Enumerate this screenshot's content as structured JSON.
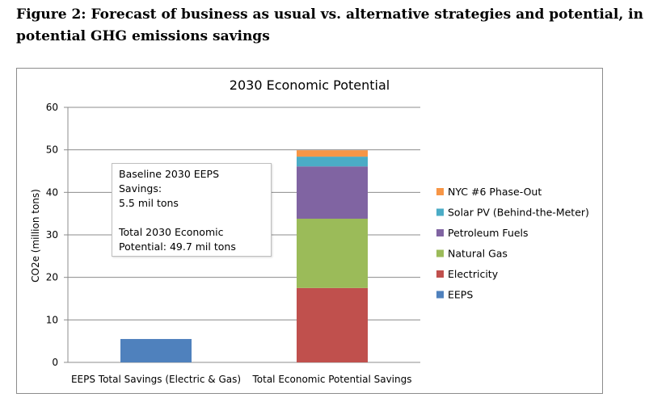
{
  "figure": {
    "title": "Figure 2: Forecast of business as usual vs. alternative strategies and potential, in potential GHG emissions savings"
  },
  "chart_data": {
    "type": "bar",
    "stacked": true,
    "title": "2030 Economic Potential",
    "xlabel": "",
    "ylabel": "CO2e (million tons)",
    "ylim": [
      0,
      60
    ],
    "yticks": [
      0,
      10,
      20,
      30,
      40,
      50,
      60
    ],
    "grid": true,
    "legend_position": "right",
    "categories": [
      "EEPS Total Savings (Electric & Gas)",
      "Total Economic Potential Savings"
    ],
    "series": [
      {
        "name": "EEPS",
        "color": "#4f81bd",
        "values": [
          5.5,
          0
        ]
      },
      {
        "name": "Electricity",
        "color": "#c0504d",
        "values": [
          0,
          17.5
        ]
      },
      {
        "name": "Natural Gas",
        "color": "#9bbb59",
        "values": [
          0,
          16.3
        ]
      },
      {
        "name": "Petroleum Fuels",
        "color": "#8064a2",
        "values": [
          0,
          12.3
        ]
      },
      {
        "name": "Solar PV (Behind-the-Meter)",
        "color": "#4bacc6",
        "values": [
          0,
          2.3
        ]
      },
      {
        "name": "NYC #6 Phase-Out",
        "color": "#f79646",
        "values": [
          0,
          1.5
        ]
      }
    ],
    "annotation": {
      "line1": "Baseline 2030 EEPS Savings:",
      "line2": "5.5 mil tons",
      "line3": "Total 2030 Economic",
      "line4": "Potential: 49.7 mil tons"
    }
  }
}
